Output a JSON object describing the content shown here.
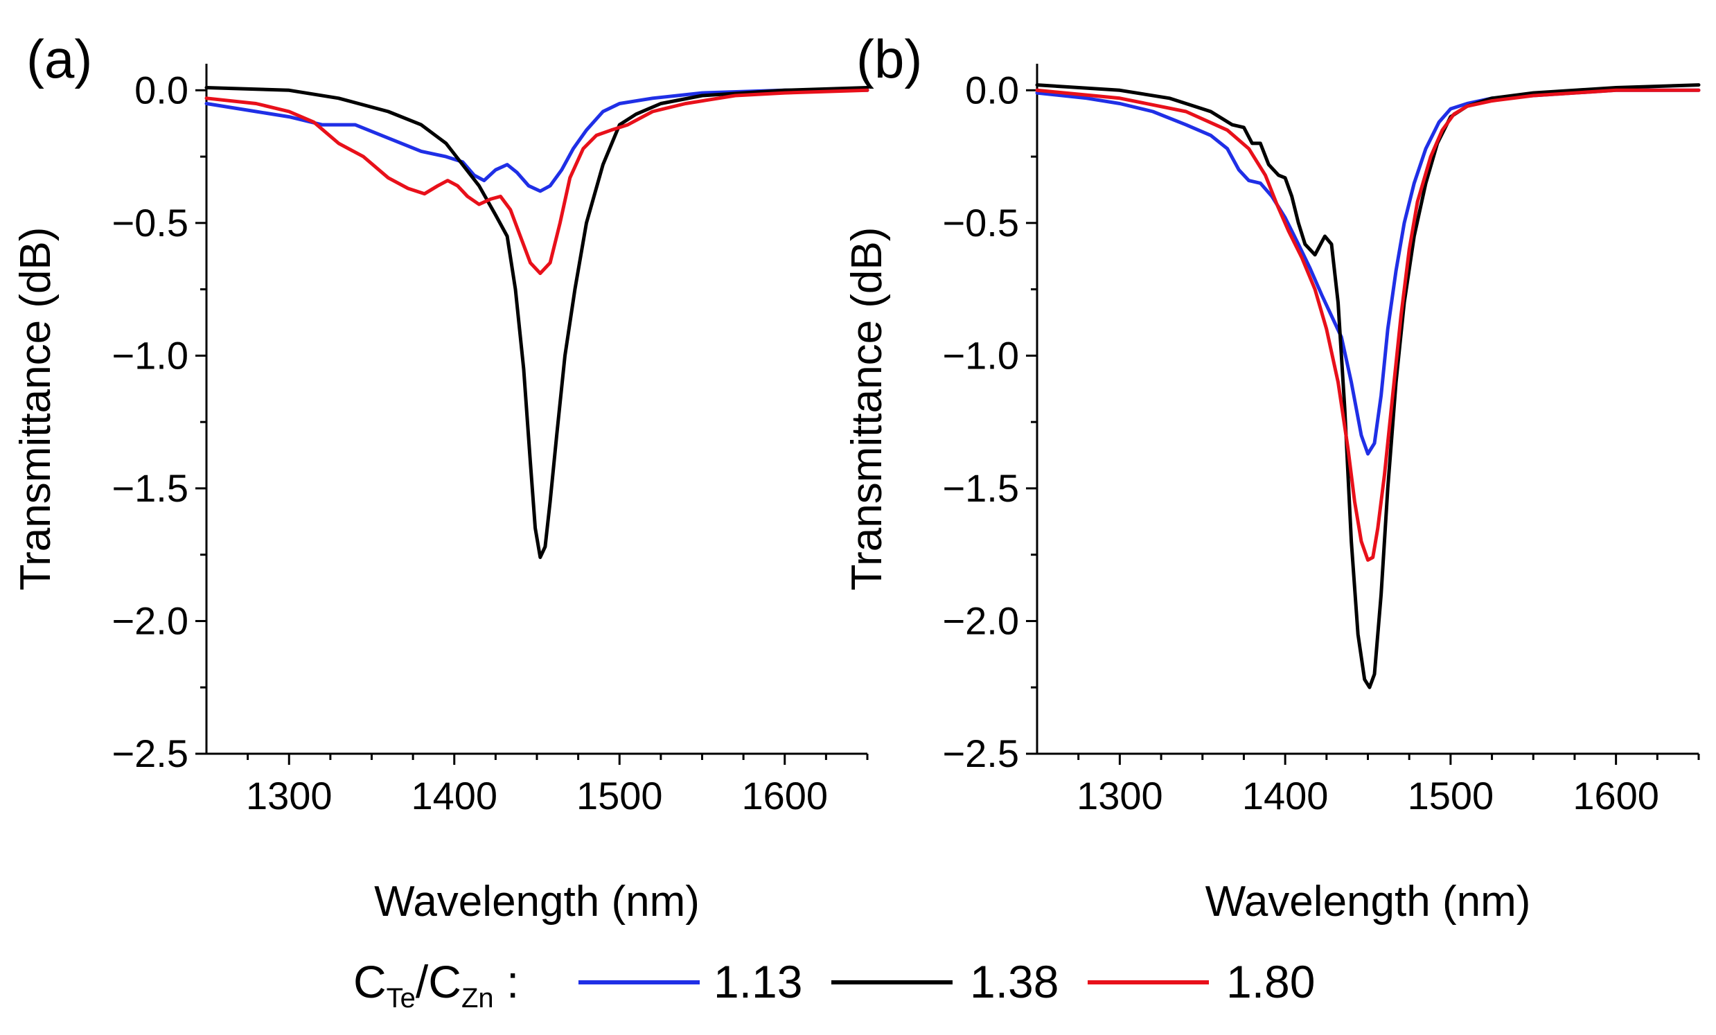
{
  "figure": {
    "legend": {
      "prefix_main_1": "C",
      "prefix_sub_1": "Te",
      "slash": "/",
      "prefix_main_2": "C",
      "prefix_sub_2": "Zn",
      "colon": " :"
    }
  },
  "chart_data": [
    {
      "type": "line",
      "panel_label": "(a)",
      "xlabel": "Wavelength (nm)",
      "ylabel": "Transmittance (dB)",
      "xlim": [
        1250,
        1650
      ],
      "ylim": [
        -2.5,
        0.1
      ],
      "xticks": [
        1300,
        1400,
        1500,
        1600
      ],
      "xtick_labels": [
        "1300",
        "1400",
        "1500",
        "1600"
      ],
      "yticks": [
        0.0,
        -0.5,
        -1.0,
        -1.5,
        -2.0,
        -2.5
      ],
      "ytick_labels": [
        "0.0",
        "−0.5",
        "−1.0",
        "−1.5",
        "−2.0",
        "−2.5"
      ],
      "series": [
        {
          "name": "1.13",
          "color": "#1f2fe6",
          "x": [
            1250,
            1280,
            1300,
            1320,
            1340,
            1360,
            1380,
            1395,
            1405,
            1412,
            1418,
            1425,
            1432,
            1438,
            1445,
            1452,
            1458,
            1465,
            1472,
            1480,
            1490,
            1500,
            1520,
            1550,
            1600,
            1650
          ],
          "y": [
            -0.05,
            -0.08,
            -0.1,
            -0.13,
            -0.13,
            -0.18,
            -0.23,
            -0.25,
            -0.27,
            -0.32,
            -0.34,
            -0.3,
            -0.28,
            -0.31,
            -0.36,
            -0.38,
            -0.36,
            -0.3,
            -0.22,
            -0.15,
            -0.08,
            -0.05,
            -0.03,
            -0.01,
            0.0,
            0.0
          ]
        },
        {
          "name": "1.38",
          "color": "#000000",
          "x": [
            1250,
            1300,
            1330,
            1360,
            1380,
            1395,
            1405,
            1415,
            1425,
            1432,
            1437,
            1442,
            1446,
            1449,
            1452,
            1455,
            1458,
            1462,
            1467,
            1473,
            1480,
            1490,
            1500,
            1510,
            1525,
            1550,
            1600,
            1650
          ],
          "y": [
            0.01,
            0.0,
            -0.03,
            -0.08,
            -0.13,
            -0.2,
            -0.28,
            -0.36,
            -0.47,
            -0.55,
            -0.75,
            -1.05,
            -1.4,
            -1.65,
            -1.76,
            -1.72,
            -1.55,
            -1.3,
            -1.0,
            -0.75,
            -0.5,
            -0.28,
            -0.13,
            -0.09,
            -0.05,
            -0.02,
            0.0,
            0.01
          ]
        },
        {
          "name": "1.80",
          "color": "#e8101a",
          "x": [
            1250,
            1280,
            1300,
            1315,
            1330,
            1345,
            1360,
            1372,
            1382,
            1390,
            1396,
            1402,
            1408,
            1415,
            1422,
            1428,
            1434,
            1440,
            1446,
            1452,
            1458,
            1464,
            1470,
            1478,
            1486,
            1495,
            1505,
            1520,
            1540,
            1570,
            1600,
            1650
          ],
          "y": [
            -0.03,
            -0.05,
            -0.08,
            -0.12,
            -0.2,
            -0.25,
            -0.33,
            -0.37,
            -0.39,
            -0.36,
            -0.34,
            -0.36,
            -0.4,
            -0.43,
            -0.41,
            -0.4,
            -0.45,
            -0.55,
            -0.65,
            -0.69,
            -0.65,
            -0.5,
            -0.33,
            -0.22,
            -0.17,
            -0.15,
            -0.13,
            -0.08,
            -0.05,
            -0.02,
            -0.01,
            0.0
          ]
        }
      ]
    },
    {
      "type": "line",
      "panel_label": "(b)",
      "xlabel": "Wavelength (nm)",
      "ylabel": "Transmittance (dB)",
      "xlim": [
        1250,
        1650
      ],
      "ylim": [
        -2.5,
        0.1
      ],
      "xticks": [
        1300,
        1400,
        1500,
        1600
      ],
      "xtick_labels": [
        "1300",
        "1400",
        "1500",
        "1600"
      ],
      "yticks": [
        0.0,
        -0.5,
        -1.0,
        -1.5,
        -2.0,
        -2.5
      ],
      "ytick_labels": [
        "0.0",
        "−0.5",
        "−1.0",
        "−1.5",
        "−2.0",
        "−2.5"
      ],
      "series": [
        {
          "name": "1.13",
          "color": "#1f2fe6",
          "x": [
            1250,
            1280,
            1300,
            1320,
            1340,
            1355,
            1365,
            1372,
            1378,
            1385,
            1392,
            1400,
            1408,
            1415,
            1422,
            1428,
            1434,
            1440,
            1446,
            1450,
            1454,
            1458,
            1462,
            1467,
            1472,
            1478,
            1485,
            1493,
            1500,
            1510,
            1525,
            1550,
            1600,
            1650
          ],
          "y": [
            -0.01,
            -0.03,
            -0.05,
            -0.08,
            -0.13,
            -0.17,
            -0.22,
            -0.3,
            -0.34,
            -0.35,
            -0.4,
            -0.48,
            -0.58,
            -0.67,
            -0.77,
            -0.85,
            -0.93,
            -1.1,
            -1.3,
            -1.37,
            -1.33,
            -1.15,
            -0.9,
            -0.68,
            -0.5,
            -0.35,
            -0.22,
            -0.12,
            -0.07,
            -0.05,
            -0.03,
            -0.02,
            0.0,
            0.0
          ]
        },
        {
          "name": "1.38",
          "color": "#000000",
          "x": [
            1250,
            1300,
            1330,
            1355,
            1368,
            1375,
            1380,
            1385,
            1390,
            1396,
            1400,
            1404,
            1408,
            1412,
            1418,
            1424,
            1428,
            1432,
            1436,
            1440,
            1444,
            1448,
            1451,
            1454,
            1458,
            1462,
            1467,
            1472,
            1478,
            1485,
            1492,
            1500,
            1510,
            1525,
            1550,
            1600,
            1650
          ],
          "y": [
            0.02,
            0.0,
            -0.03,
            -0.08,
            -0.13,
            -0.14,
            -0.2,
            -0.2,
            -0.28,
            -0.32,
            -0.33,
            -0.4,
            -0.5,
            -0.58,
            -0.62,
            -0.55,
            -0.58,
            -0.8,
            -1.2,
            -1.7,
            -2.05,
            -2.22,
            -2.25,
            -2.2,
            -1.9,
            -1.5,
            -1.1,
            -0.8,
            -0.55,
            -0.35,
            -0.2,
            -0.1,
            -0.06,
            -0.03,
            -0.01,
            0.01,
            0.02
          ]
        },
        {
          "name": "1.80",
          "color": "#e8101a",
          "x": [
            1250,
            1300,
            1340,
            1365,
            1378,
            1388,
            1395,
            1402,
            1410,
            1418,
            1425,
            1432,
            1438,
            1442,
            1446,
            1450,
            1453,
            1456,
            1460,
            1465,
            1470,
            1475,
            1480,
            1488,
            1495,
            1502,
            1510,
            1525,
            1550,
            1600,
            1650
          ],
          "y": [
            0.0,
            -0.03,
            -0.08,
            -0.15,
            -0.22,
            -0.32,
            -0.43,
            -0.53,
            -0.63,
            -0.75,
            -0.9,
            -1.1,
            -1.35,
            -1.55,
            -1.7,
            -1.77,
            -1.76,
            -1.65,
            -1.45,
            -1.15,
            -0.85,
            -0.6,
            -0.42,
            -0.25,
            -0.15,
            -0.09,
            -0.06,
            -0.04,
            -0.02,
            0.0,
            0.0
          ]
        }
      ]
    }
  ]
}
